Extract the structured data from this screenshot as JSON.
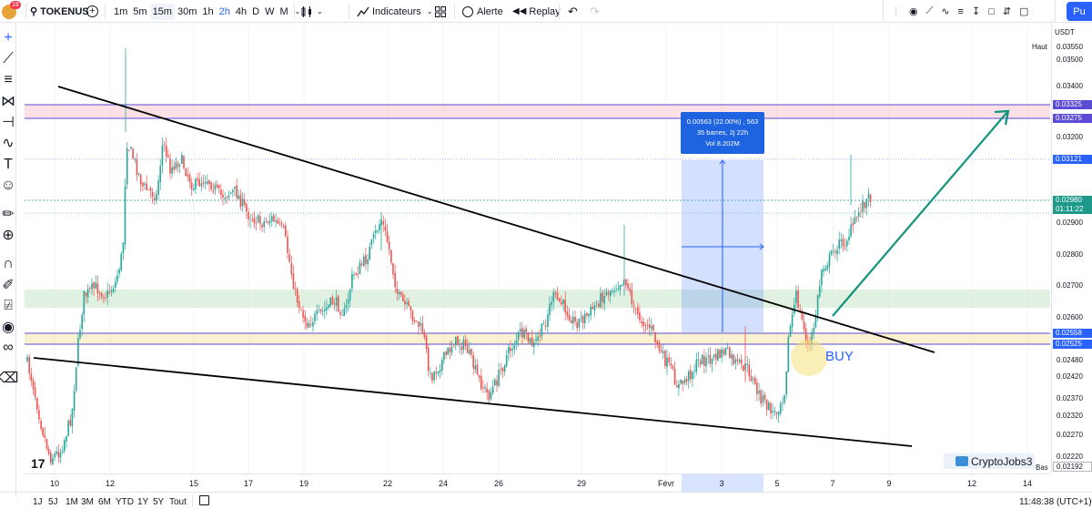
{
  "topbar": {
    "notification_count": "18",
    "symbol": "TOKENUS",
    "timeframes": [
      "1m",
      "5m",
      "15m",
      "30m",
      "1h",
      "2h",
      "4h",
      "D",
      "W",
      "M"
    ],
    "active_timeframe": "15m",
    "indicators_label": "Indicateurs",
    "alert_label": "Alerte",
    "replay_label": "Replay",
    "publish_label": "Pu"
  },
  "price_scale": {
    "currency": "USDT",
    "haut_label": "Haut",
    "bas_label": "Bas",
    "labels": [
      "0.03550",
      "0.03500",
      "0.03400",
      "0.03200",
      "0.02900",
      "0.02800",
      "0.02700",
      "0.02600",
      "0.02480",
      "0.02420",
      "0.02370",
      "0.02320",
      "0.02270",
      "0.02220"
    ],
    "tags": {
      "high": "0.03325",
      "resist": "0.03275",
      "target": "0.03121",
      "last": "0.02980",
      "countdown": "01:11:22",
      "s1": "0.02558",
      "s2": "0.02525",
      "low": "0.02192"
    },
    "colors": {
      "blue": "#2962ff",
      "purple": "#5b4bd6",
      "last": "#1e9a8a"
    }
  },
  "time_scale": {
    "labels": [
      "10",
      "12",
      "15",
      "17",
      "19",
      "22",
      "24",
      "26",
      "29",
      "Févr",
      "3",
      "5",
      "7",
      "9",
      "12",
      "14"
    ]
  },
  "measure_box": {
    "line1": "0.00563 (22.00%) , 563",
    "line2": "35 barres, 2j 22h",
    "line3": "Vol 8.202M"
  },
  "annotations": {
    "buy_label": "BUY",
    "watermark": "CryptoJobs3",
    "tv_logo": "17"
  },
  "bottombar": {
    "ranges": [
      "1J",
      "5J",
      "1M",
      "3M",
      "6M",
      "YTD",
      "1Y",
      "5Y",
      "Tout"
    ],
    "clock": "11:48:38 (UTC+1)"
  },
  "chart_data": {
    "type": "candlestick",
    "symbol": "TOKENUS",
    "quote": "USDT",
    "timeframe": "15m",
    "ylim": [
      0.0219,
      0.0357
    ],
    "x_ticks": [
      "10",
      "12",
      "15",
      "17",
      "19",
      "22",
      "24",
      "26",
      "29",
      "Févr",
      "3",
      "5",
      "7",
      "9",
      "12",
      "14"
    ],
    "price_lines": [
      0.03325,
      0.03275,
      0.03121,
      0.0298,
      0.02558,
      0.02525
    ],
    "range_high": 0.0355,
    "range_low": 0.02192,
    "measure": {
      "change": 0.00563,
      "change_pct": 22.0,
      "bars": 35,
      "duration": "2j 22h",
      "volume": "8.202M"
    },
    "last_price": 0.0298,
    "colors": {
      "up": "#26a69a",
      "down": "#ef5350"
    }
  }
}
